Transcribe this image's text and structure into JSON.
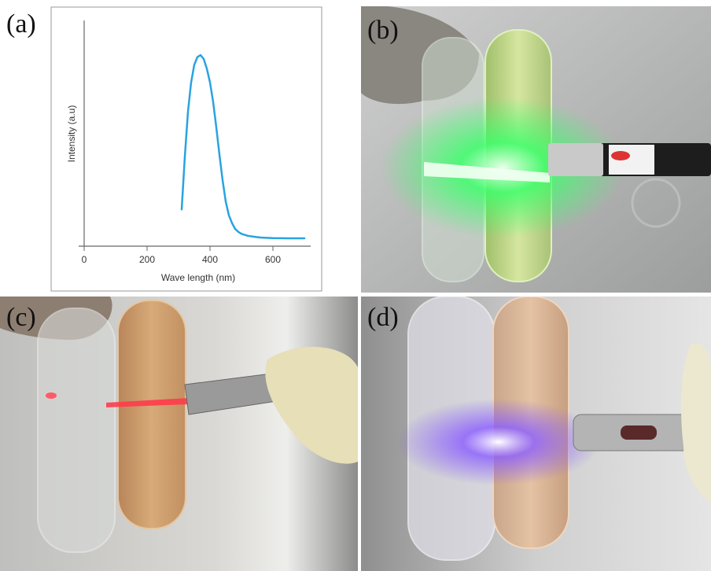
{
  "figure": {
    "panels": [
      {
        "id": "a",
        "label": "(a)"
      },
      {
        "id": "b",
        "label": "(b)"
      },
      {
        "id": "c",
        "label": "(c)"
      },
      {
        "id": "d",
        "label": "(d)"
      }
    ]
  },
  "colors": {
    "curve": "#29a3e0",
    "green_laser": "#3bff6a",
    "red_laser": "#ff3b4a",
    "violet_laser": "#8a5cff"
  },
  "chart_data": {
    "type": "line",
    "xlabel": "Wave length (nm)",
    "ylabel": "Intensity (a.u)",
    "xlim": [
      -20,
      700
    ],
    "ylim": [
      0,
      1.0
    ],
    "x_ticks": [
      0,
      200,
      400,
      600
    ],
    "x_tick_labels": [
      "0",
      "200",
      "400",
      "600"
    ],
    "grid": false,
    "series": [
      {
        "x": [
          310,
          320,
          330,
          340,
          350,
          360,
          370,
          380,
          390,
          400,
          410,
          420,
          430,
          440,
          450,
          460,
          470,
          480,
          490,
          500,
          520,
          540,
          560,
          600,
          650,
          700
        ],
        "values": [
          0.16,
          0.43,
          0.66,
          0.81,
          0.9,
          0.94,
          0.95,
          0.93,
          0.88,
          0.81,
          0.71,
          0.58,
          0.44,
          0.31,
          0.2,
          0.13,
          0.09,
          0.06,
          0.045,
          0.035,
          0.025,
          0.02,
          0.016,
          0.013,
          0.012,
          0.012
        ]
      }
    ]
  }
}
